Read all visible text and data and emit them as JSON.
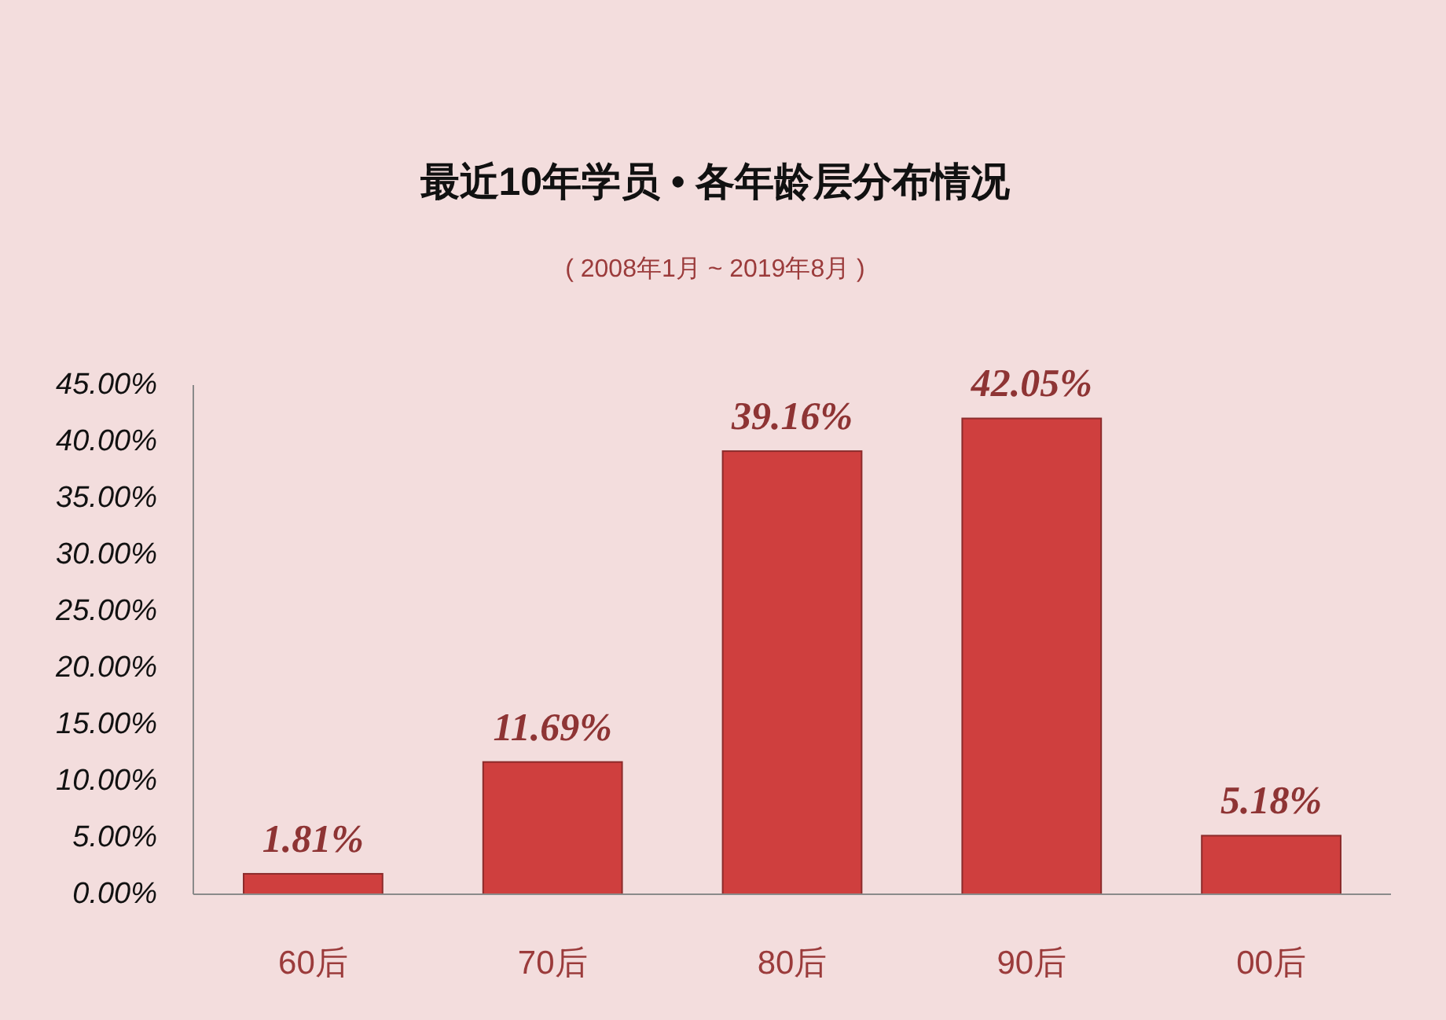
{
  "chart_data": {
    "type": "bar",
    "title": "最近10年学员 • 各年龄层分布情况",
    "subtitle": "( 2008年1月 ~ 2019年8月 )",
    "categories": [
      "60后",
      "70后",
      "80后",
      "90后",
      "00后"
    ],
    "values": [
      1.81,
      11.69,
      39.16,
      42.05,
      5.18
    ],
    "color": "#cf3f3e",
    "value_labels": [
      "1.81%",
      "11.69%",
      "39.16%",
      "42.05%",
      "5.18%"
    ],
    "ylim": [
      0,
      45
    ],
    "yticks": [
      {
        "value": 0,
        "label": "0.00%"
      },
      {
        "value": 5,
        "label": "5.00%"
      },
      {
        "value": 10,
        "label": "10.00%"
      },
      {
        "value": 15,
        "label": "15.00%"
      },
      {
        "value": 20,
        "label": "20.00%"
      },
      {
        "value": 25,
        "label": "25.00%"
      },
      {
        "value": 30,
        "label": "30.00%"
      },
      {
        "value": 35,
        "label": "35.00%"
      },
      {
        "value": 40,
        "label": "40.00%"
      },
      {
        "value": 45,
        "label": "45.00%"
      }
    ]
  }
}
